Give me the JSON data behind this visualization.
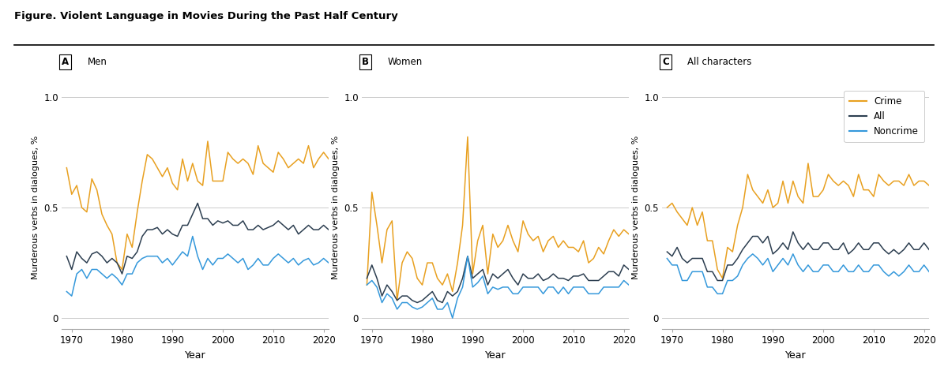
{
  "title": "Figure. Violent Language in Movies During the Past Half Century",
  "ylabel": "Murderous verbs in dialogues, %",
  "xlabel": "Year",
  "years": [
    1969,
    1970,
    1971,
    1972,
    1973,
    1974,
    1975,
    1976,
    1977,
    1978,
    1979,
    1980,
    1981,
    1982,
    1983,
    1984,
    1985,
    1986,
    1987,
    1988,
    1989,
    1990,
    1991,
    1992,
    1993,
    1994,
    1995,
    1996,
    1997,
    1998,
    1999,
    2000,
    2001,
    2002,
    2003,
    2004,
    2005,
    2006,
    2007,
    2008,
    2009,
    2010,
    2011,
    2012,
    2013,
    2014,
    2015,
    2016,
    2017,
    2018,
    2019,
    2020,
    2021
  ],
  "panels": [
    {
      "label": "A",
      "title": "Men",
      "crime": [
        0.68,
        0.56,
        0.6,
        0.5,
        0.48,
        0.63,
        0.58,
        0.47,
        0.42,
        0.38,
        0.25,
        0.22,
        0.38,
        0.32,
        0.48,
        0.62,
        0.74,
        0.72,
        0.68,
        0.64,
        0.68,
        0.61,
        0.58,
        0.72,
        0.62,
        0.7,
        0.62,
        0.6,
        0.8,
        0.62,
        0.62,
        0.62,
        0.75,
        0.72,
        0.7,
        0.72,
        0.7,
        0.65,
        0.78,
        0.7,
        0.68,
        0.66,
        0.75,
        0.72,
        0.68,
        0.7,
        0.72,
        0.7,
        0.78,
        0.68,
        0.72,
        0.75,
        0.72
      ],
      "all": [
        0.28,
        0.22,
        0.3,
        0.27,
        0.25,
        0.29,
        0.3,
        0.28,
        0.25,
        0.27,
        0.25,
        0.2,
        0.28,
        0.27,
        0.3,
        0.37,
        0.4,
        0.4,
        0.41,
        0.38,
        0.4,
        0.38,
        0.37,
        0.42,
        0.42,
        0.47,
        0.52,
        0.45,
        0.45,
        0.42,
        0.44,
        0.43,
        0.44,
        0.42,
        0.42,
        0.44,
        0.4,
        0.4,
        0.42,
        0.4,
        0.41,
        0.42,
        0.44,
        0.42,
        0.4,
        0.42,
        0.38,
        0.4,
        0.42,
        0.4,
        0.4,
        0.42,
        0.4
      ],
      "noncrime": [
        0.12,
        0.1,
        0.2,
        0.22,
        0.18,
        0.22,
        0.22,
        0.2,
        0.18,
        0.2,
        0.18,
        0.15,
        0.2,
        0.2,
        0.25,
        0.27,
        0.28,
        0.28,
        0.28,
        0.25,
        0.27,
        0.24,
        0.27,
        0.3,
        0.28,
        0.37,
        0.28,
        0.22,
        0.27,
        0.24,
        0.27,
        0.27,
        0.29,
        0.27,
        0.25,
        0.27,
        0.22,
        0.24,
        0.27,
        0.24,
        0.24,
        0.27,
        0.29,
        0.27,
        0.25,
        0.27,
        0.24,
        0.26,
        0.27,
        0.24,
        0.25,
        0.27,
        0.25
      ]
    },
    {
      "label": "B",
      "title": "Women",
      "crime": [
        0.15,
        0.57,
        0.42,
        0.25,
        0.4,
        0.44,
        0.08,
        0.25,
        0.3,
        0.27,
        0.18,
        0.15,
        0.25,
        0.25,
        0.18,
        0.15,
        0.2,
        0.12,
        0.25,
        0.42,
        0.82,
        0.2,
        0.35,
        0.42,
        0.2,
        0.38,
        0.32,
        0.35,
        0.42,
        0.35,
        0.3,
        0.44,
        0.38,
        0.35,
        0.37,
        0.3,
        0.35,
        0.37,
        0.32,
        0.35,
        0.32,
        0.32,
        0.3,
        0.35,
        0.25,
        0.27,
        0.32,
        0.29,
        0.35,
        0.4,
        0.37,
        0.4,
        0.38
      ],
      "all": [
        0.18,
        0.24,
        0.18,
        0.1,
        0.15,
        0.12,
        0.08,
        0.1,
        0.1,
        0.08,
        0.07,
        0.08,
        0.1,
        0.12,
        0.08,
        0.07,
        0.12,
        0.1,
        0.12,
        0.18,
        0.28,
        0.18,
        0.2,
        0.22,
        0.15,
        0.2,
        0.18,
        0.2,
        0.22,
        0.18,
        0.15,
        0.2,
        0.18,
        0.18,
        0.2,
        0.17,
        0.18,
        0.2,
        0.18,
        0.18,
        0.17,
        0.19,
        0.19,
        0.2,
        0.17,
        0.17,
        0.17,
        0.19,
        0.21,
        0.21,
        0.19,
        0.24,
        0.22
      ],
      "noncrime": [
        0.15,
        0.17,
        0.14,
        0.07,
        0.11,
        0.09,
        0.04,
        0.07,
        0.07,
        0.05,
        0.04,
        0.05,
        0.07,
        0.09,
        0.04,
        0.04,
        0.07,
        0.0,
        0.09,
        0.14,
        0.28,
        0.14,
        0.16,
        0.19,
        0.11,
        0.14,
        0.13,
        0.14,
        0.14,
        0.11,
        0.11,
        0.14,
        0.14,
        0.14,
        0.14,
        0.11,
        0.14,
        0.14,
        0.11,
        0.14,
        0.11,
        0.14,
        0.14,
        0.14,
        0.11,
        0.11,
        0.11,
        0.14,
        0.14,
        0.14,
        0.14,
        0.17,
        0.15
      ]
    },
    {
      "label": "C",
      "title": "All characters",
      "crime": [
        0.5,
        0.52,
        0.48,
        0.45,
        0.42,
        0.5,
        0.42,
        0.48,
        0.35,
        0.35,
        0.22,
        0.18,
        0.32,
        0.3,
        0.42,
        0.5,
        0.65,
        0.58,
        0.55,
        0.52,
        0.58,
        0.5,
        0.52,
        0.62,
        0.52,
        0.62,
        0.55,
        0.52,
        0.7,
        0.55,
        0.55,
        0.58,
        0.65,
        0.62,
        0.6,
        0.62,
        0.6,
        0.55,
        0.65,
        0.58,
        0.58,
        0.55,
        0.65,
        0.62,
        0.6,
        0.62,
        0.62,
        0.6,
        0.65,
        0.6,
        0.62,
        0.62,
        0.6
      ],
      "all": [
        0.3,
        0.28,
        0.32,
        0.27,
        0.25,
        0.27,
        0.27,
        0.27,
        0.21,
        0.21,
        0.17,
        0.17,
        0.24,
        0.24,
        0.27,
        0.31,
        0.34,
        0.37,
        0.37,
        0.34,
        0.37,
        0.29,
        0.31,
        0.34,
        0.31,
        0.39,
        0.34,
        0.31,
        0.34,
        0.31,
        0.31,
        0.34,
        0.34,
        0.31,
        0.31,
        0.34,
        0.29,
        0.31,
        0.34,
        0.31,
        0.31,
        0.34,
        0.34,
        0.31,
        0.29,
        0.31,
        0.29,
        0.31,
        0.34,
        0.31,
        0.31,
        0.34,
        0.31
      ],
      "noncrime": [
        0.27,
        0.24,
        0.24,
        0.17,
        0.17,
        0.21,
        0.21,
        0.21,
        0.14,
        0.14,
        0.11,
        0.11,
        0.17,
        0.17,
        0.19,
        0.24,
        0.27,
        0.29,
        0.27,
        0.24,
        0.27,
        0.21,
        0.24,
        0.27,
        0.24,
        0.29,
        0.24,
        0.21,
        0.24,
        0.21,
        0.21,
        0.24,
        0.24,
        0.21,
        0.21,
        0.24,
        0.21,
        0.21,
        0.24,
        0.21,
        0.21,
        0.24,
        0.24,
        0.21,
        0.19,
        0.21,
        0.19,
        0.21,
        0.24,
        0.21,
        0.21,
        0.24,
        0.21
      ]
    }
  ],
  "color_crime": "#E8A020",
  "color_all": "#2C3E50",
  "color_noncrime": "#3498DB",
  "ylim": [
    -0.05,
    1.05
  ],
  "yticks": [
    0,
    0.5,
    1.0
  ],
  "xticks": [
    1970,
    1980,
    1990,
    2000,
    2010,
    2020
  ],
  "bg_color": "#FFFFFF",
  "grid_color": "#CCCCCC",
  "spine_color": "#AAAAAA"
}
